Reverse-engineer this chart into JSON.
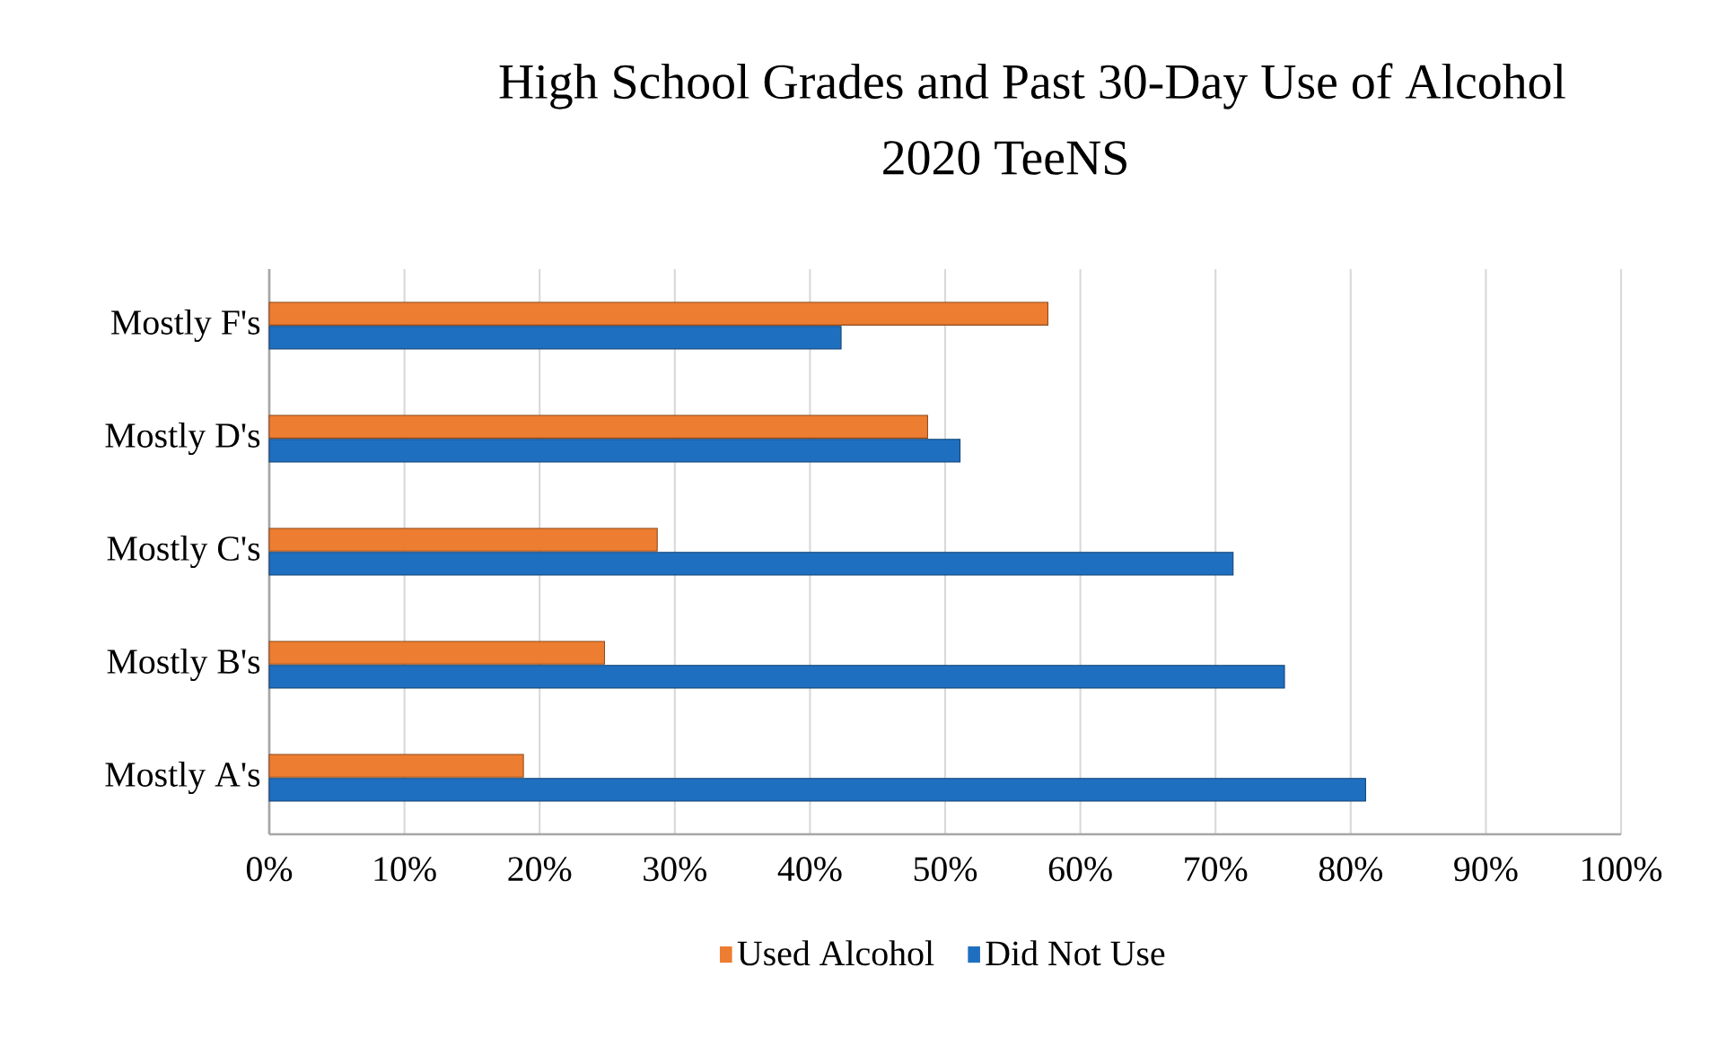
{
  "chart_data": {
    "type": "bar",
    "orientation": "horizontal",
    "title": "High School Grades and Past 30-Day Use of Alcohol",
    "subtitle": "2020 TeeNS",
    "categories": [
      "Mostly F's",
      "Mostly D's",
      "Mostly C's",
      "Mostly B's",
      "Mostly A's"
    ],
    "series": [
      {
        "name": "Used Alcohol",
        "color": "#ed7d31",
        "values": [
          57.6,
          48.7,
          28.7,
          24.8,
          18.8
        ]
      },
      {
        "name": "Did Not Use",
        "color": "#1f6fc0",
        "values": [
          42.3,
          51.1,
          71.3,
          75.1,
          81.1
        ]
      }
    ],
    "xlim": [
      0,
      100
    ],
    "xticks": [
      {
        "value": 0,
        "label": "0%"
      },
      {
        "value": 10,
        "label": "10%"
      },
      {
        "value": 20,
        "label": "20%"
      },
      {
        "value": 30,
        "label": "30%"
      },
      {
        "value": 40,
        "label": "40%"
      },
      {
        "value": 50,
        "label": "50%"
      },
      {
        "value": 60,
        "label": "60%"
      },
      {
        "value": 70,
        "label": "70%"
      },
      {
        "value": 80,
        "label": "80%"
      },
      {
        "value": 90,
        "label": "90%"
      },
      {
        "value": 100,
        "label": "100%"
      }
    ],
    "grid": "x",
    "legend": "bottom"
  }
}
